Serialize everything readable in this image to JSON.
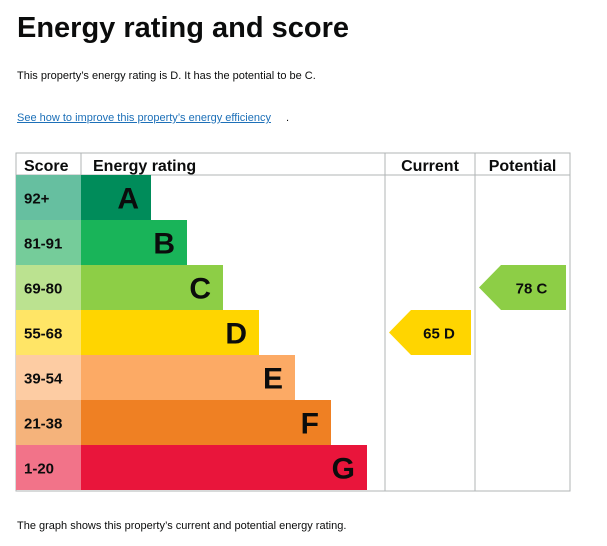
{
  "page": {
    "title": "Energy rating and score",
    "summary": "This property’s energy rating is D. It has the potential to be C.",
    "improve_link": "See how to improve this property’s energy efficiency",
    "improve_link_suffix": ".",
    "footer": "The graph shows this property’s current and potential energy rating."
  },
  "chart_data": {
    "type": "bar",
    "headers": {
      "score": "Score",
      "rating": "Energy rating",
      "current": "Current",
      "potential": "Potential"
    },
    "bands": [
      {
        "score": "92+",
        "letter": "A",
        "color": "#008c5a",
        "score_color": "#66bfa0"
      },
      {
        "score": "81-91",
        "letter": "B",
        "color": "#19b459",
        "score_color": "#75cc9a"
      },
      {
        "score": "69-80",
        "letter": "C",
        "color": "#8dce46",
        "score_color": "#bbe290"
      },
      {
        "score": "55-68",
        "letter": "D",
        "color": "#ffd500",
        "score_color": "#ffe566"
      },
      {
        "score": "39-54",
        "letter": "E",
        "color": "#fcaa65",
        "score_color": "#fdcca3"
      },
      {
        "score": "21-38",
        "letter": "F",
        "color": "#ef8023",
        "score_color": "#f5b37b"
      },
      {
        "score": "1-20",
        "letter": "G",
        "color": "#e9153b",
        "score_color": "#f27389"
      }
    ],
    "current": {
      "score": 65,
      "letter": "D",
      "label": "65  D",
      "color": "#ffd500"
    },
    "potential": {
      "score": 78,
      "letter": "C",
      "label": "78  C",
      "color": "#8dce46"
    }
  }
}
